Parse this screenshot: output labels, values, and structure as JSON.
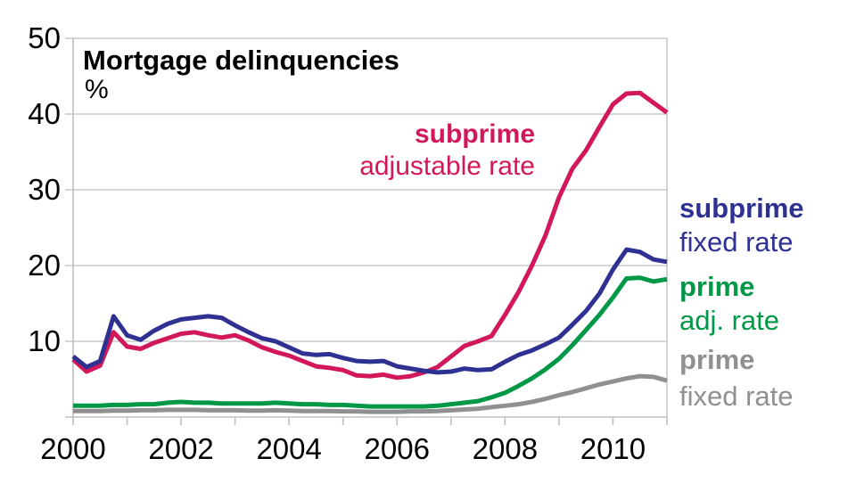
{
  "title": "Mortgage delinquencies",
  "unit_label": "%",
  "colors": {
    "subprime_adjustable": "#d2175a",
    "subprime_fixed": "#2e3192",
    "prime_adjustable": "#009847",
    "prime_fixed": "#909090",
    "gridline": "#c8c8c8",
    "axis": "#c0c0c0",
    "text": "#000000"
  },
  "labels": {
    "subprime_arm": {
      "line1": "subprime",
      "line2": "adjustable rate"
    },
    "subprime_frm": {
      "line1": "subprime",
      "line2": "fixed rate"
    },
    "prime_arm": {
      "line1": "prime",
      "line2": "adj. rate"
    },
    "prime_frm": {
      "line1": "prime",
      "line2": "fixed rate"
    }
  },
  "chart_data": {
    "type": "line",
    "title": "Mortgage delinquencies",
    "ylabel": "%",
    "xlabel": "",
    "grid": "horizontal",
    "legend_position": "right margin and inline annotation",
    "xlim": [
      2000,
      2011
    ],
    "ylim": [
      0,
      50
    ],
    "x_start": 2000,
    "x_step": 0.25,
    "y_ticks": [
      10,
      20,
      30,
      40,
      50
    ],
    "x_minor_tick_years": [
      2000,
      2001,
      2002,
      2003,
      2004,
      2005,
      2006,
      2007,
      2008,
      2009,
      2010,
      2011
    ],
    "x_tick_labels": [
      {
        "year": 2000,
        "label": "2000"
      },
      {
        "year": 2002,
        "label": "2002"
      },
      {
        "year": 2004,
        "label": "2004"
      },
      {
        "year": 2006,
        "label": "2006"
      },
      {
        "year": 2008,
        "label": "2008"
      },
      {
        "year": 2010,
        "label": "2010"
      }
    ],
    "series": [
      {
        "name": "prime fixed rate",
        "color": "#909090",
        "values": [
          0.8,
          0.8,
          0.8,
          0.85,
          0.85,
          0.9,
          0.9,
          0.95,
          0.95,
          0.95,
          0.9,
          0.9,
          0.9,
          0.85,
          0.85,
          0.9,
          0.85,
          0.8,
          0.8,
          0.8,
          0.75,
          0.75,
          0.7,
          0.7,
          0.7,
          0.75,
          0.75,
          0.8,
          0.9,
          1.0,
          1.1,
          1.3,
          1.5,
          1.7,
          2.0,
          2.4,
          2.9,
          3.3,
          3.8,
          4.3,
          4.7,
          5.1,
          5.4,
          5.3,
          4.8
        ]
      },
      {
        "name": "prime adj. rate",
        "color": "#009847",
        "values": [
          1.5,
          1.5,
          1.5,
          1.6,
          1.6,
          1.7,
          1.7,
          1.9,
          2.0,
          1.9,
          1.9,
          1.8,
          1.8,
          1.8,
          1.8,
          1.9,
          1.8,
          1.7,
          1.7,
          1.6,
          1.6,
          1.5,
          1.4,
          1.4,
          1.4,
          1.4,
          1.4,
          1.5,
          1.7,
          1.9,
          2.1,
          2.6,
          3.2,
          4.1,
          5.1,
          6.3,
          7.7,
          9.5,
          11.5,
          13.5,
          15.8,
          18.3,
          18.4,
          17.9,
          18.2
        ]
      },
      {
        "name": "subprime adjustable rate",
        "color": "#d2175a",
        "values": [
          7.6,
          6.0,
          6.8,
          11.2,
          9.3,
          9.0,
          9.8,
          10.4,
          11.0,
          11.2,
          10.8,
          10.5,
          10.8,
          10.1,
          9.2,
          8.6,
          8.1,
          7.4,
          6.7,
          6.5,
          6.2,
          5.5,
          5.4,
          5.6,
          5.2,
          5.4,
          5.9,
          6.6,
          8.0,
          9.4,
          10.0,
          10.7,
          13.5,
          16.5,
          20.0,
          24.0,
          29.0,
          32.8,
          35.2,
          38.3,
          41.3,
          42.7,
          42.8,
          41.5,
          40.2
        ]
      },
      {
        "name": "subprime fixed rate",
        "color": "#2e3192",
        "values": [
          8.0,
          6.6,
          7.4,
          13.3,
          10.8,
          10.2,
          11.4,
          12.3,
          12.9,
          13.1,
          13.3,
          13.1,
          12.1,
          11.2,
          10.4,
          10.0,
          9.2,
          8.4,
          8.2,
          8.3,
          7.8,
          7.4,
          7.3,
          7.4,
          6.7,
          6.4,
          6.1,
          5.9,
          6.0,
          6.4,
          6.2,
          6.3,
          7.3,
          8.2,
          8.8,
          9.6,
          10.5,
          12.2,
          14.0,
          16.3,
          19.5,
          22.1,
          21.8,
          20.8,
          20.5
        ]
      }
    ]
  }
}
